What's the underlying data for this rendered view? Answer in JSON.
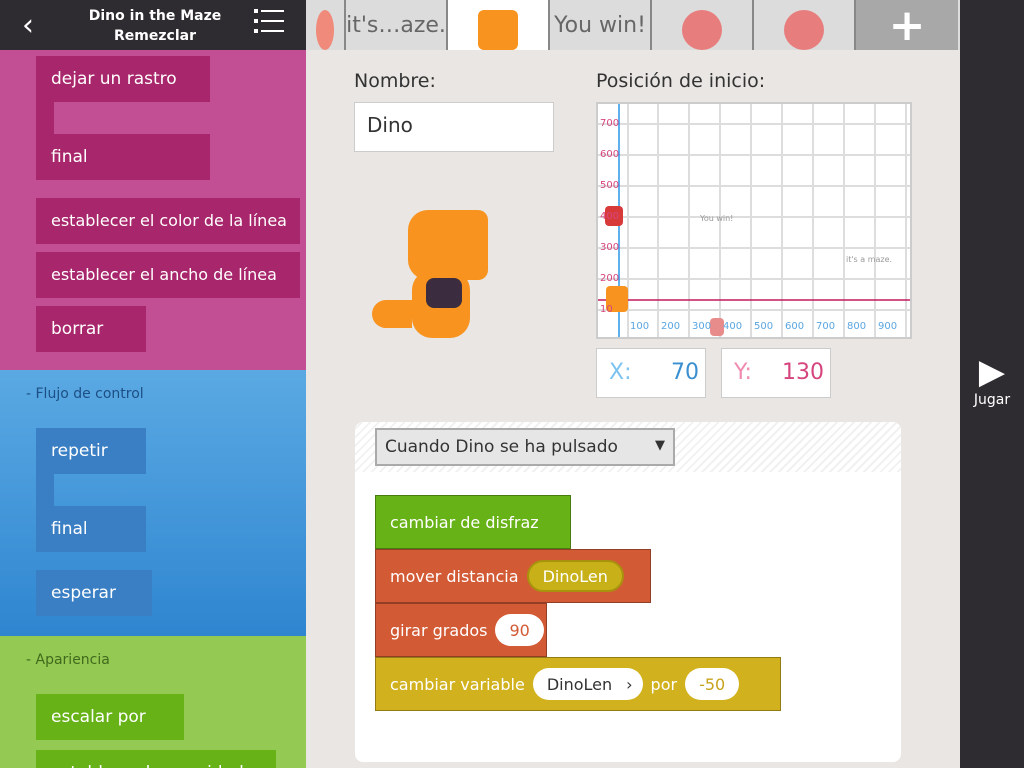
{
  "header": {
    "back": "‹",
    "title": "Dino in the Maze",
    "subtitle": "Remezclar"
  },
  "tabs": [
    "",
    "it's…aze.",
    "",
    "You win!",
    "",
    "",
    ""
  ],
  "add_label": "+",
  "palette": {
    "pen_blocks": [
      "dejar un rastro",
      "final",
      "establecer el color de la línea",
      "establecer el ancho de línea",
      "borrar"
    ],
    "control_label": "- Flujo de control",
    "control_blocks": [
      "repetir",
      "final",
      "esperar"
    ],
    "looks_label": "- Apariencia",
    "looks_blocks": [
      "escalar por",
      "establecer la opacidad"
    ]
  },
  "editor": {
    "name_label": "Nombre:",
    "name_value": "Dino",
    "start_label": "Posición de inicio:",
    "x_label": "X:",
    "x_value": "70",
    "y_label": "Y:",
    "y_value": "130",
    "grid": {
      "y_ticks": [
        "700",
        "600",
        "500",
        "400",
        "300",
        "200",
        "10"
      ],
      "x_ticks": [
        "100",
        "200",
        "300",
        "400",
        "500",
        "600",
        "700",
        "800",
        "900"
      ],
      "texts": [
        "You win!",
        "it's a maze."
      ]
    },
    "event": "Cuando Dino se ha pulsado",
    "blocks": {
      "b1": "cambiar de disfraz",
      "b2": "mover distancia",
      "b2_arg": "DinoLen",
      "b3": "girar grados",
      "b3_arg": "90",
      "b4": "cambiar variable",
      "b4_var": "DinoLen",
      "b4_por": "por",
      "b4_arg": "-50"
    }
  },
  "play": {
    "icon": "▶",
    "label": "Jugar"
  },
  "colors": {
    "pen": "#c0458a",
    "control": "#3e8fd3",
    "looks": "#8cc445"
  }
}
